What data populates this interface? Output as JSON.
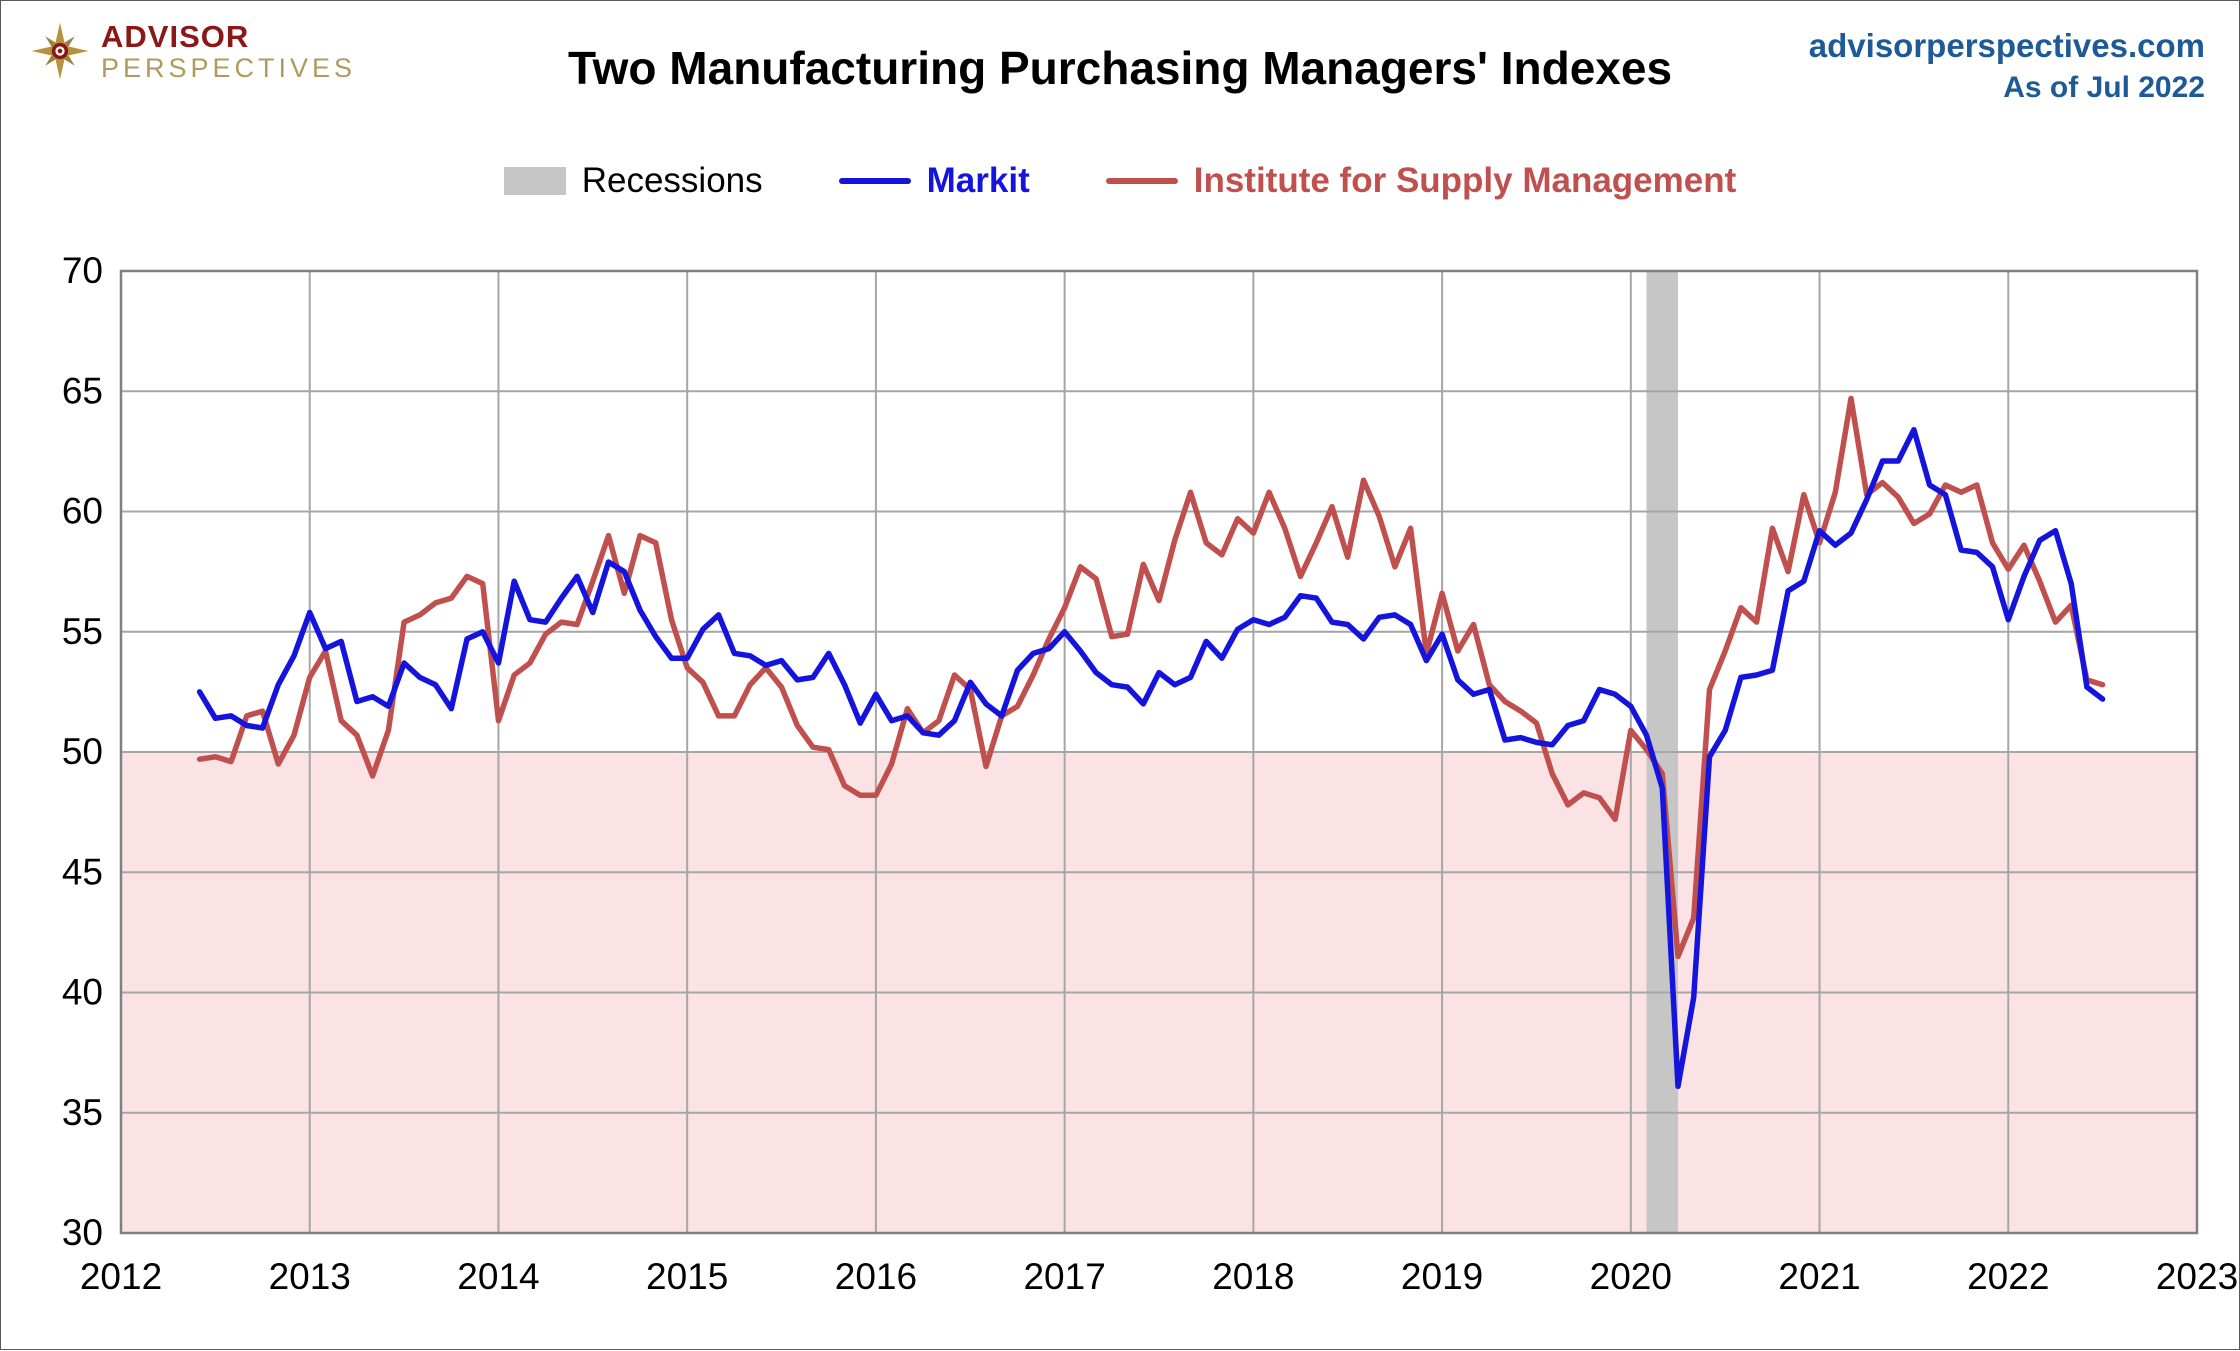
{
  "header": {
    "logo_line1": "ADVISOR",
    "logo_line2": "PERSPECTIVES",
    "title": "Two Manufacturing Purchasing Managers' Indexes",
    "site": "advisorperspectives.com",
    "as_of": "As of Jul 2022"
  },
  "legend": {
    "recessions_label": "Recessions",
    "series": [
      {
        "label": "Markit",
        "color": "#1414dd"
      },
      {
        "label": "Institute for Supply Management",
        "color": "#c0504d"
      }
    ]
  },
  "colors": {
    "recession_band": "#c6c6c6",
    "below50_fill": "#fbe2e4",
    "grid": "#a6a6a6",
    "plot_border": "#808080",
    "axis_text": "#000000",
    "site_text": "#1d5a96",
    "logo_red": "#8b1717",
    "logo_tan": "#b09a5e"
  },
  "chart_data": {
    "type": "line",
    "title": "Two Manufacturing Purchasing Managers' Indexes",
    "xlabel": "",
    "ylabel": "",
    "xlim": [
      2012,
      2023
    ],
    "ylim": [
      30,
      70
    ],
    "x_ticks": [
      2012,
      2013,
      2014,
      2015,
      2016,
      2017,
      2018,
      2019,
      2020,
      2021,
      2022,
      2023
    ],
    "y_ticks": [
      30,
      35,
      40,
      45,
      50,
      55,
      60,
      65,
      70
    ],
    "grid": true,
    "legend_position": "top",
    "neutral_level": 50,
    "x_start": {
      "year": 2012,
      "month": 6
    },
    "frequency": "monthly",
    "recessions": [
      {
        "start": 2020.083,
        "end": 2020.25
      }
    ],
    "series": [
      {
        "name": "Markit",
        "color": "#1414dd",
        "values": [
          52.5,
          51.4,
          51.5,
          51.1,
          51.0,
          52.8,
          54.0,
          55.8,
          54.3,
          54.6,
          52.1,
          52.3,
          51.9,
          53.7,
          53.1,
          52.8,
          51.8,
          54.7,
          55.0,
          53.7,
          57.1,
          55.5,
          55.4,
          56.4,
          57.3,
          55.8,
          57.9,
          57.5,
          55.9,
          54.8,
          53.9,
          53.9,
          55.1,
          55.7,
          54.1,
          54.0,
          53.6,
          53.8,
          53.0,
          53.1,
          54.1,
          52.8,
          51.2,
          52.4,
          51.3,
          51.5,
          50.8,
          50.7,
          51.3,
          52.9,
          52.0,
          51.5,
          53.4,
          54.1,
          54.3,
          55.0,
          54.2,
          53.3,
          52.8,
          52.7,
          52.0,
          53.3,
          52.8,
          53.1,
          54.6,
          53.9,
          55.1,
          55.5,
          55.3,
          55.6,
          56.5,
          56.4,
          55.4,
          55.3,
          54.7,
          55.6,
          55.7,
          55.3,
          53.8,
          54.9,
          53.0,
          52.4,
          52.6,
          50.5,
          50.6,
          50.4,
          50.3,
          51.1,
          51.3,
          52.6,
          52.4,
          51.9,
          50.7,
          48.5,
          36.1,
          39.8,
          49.8,
          50.9,
          53.1,
          53.2,
          53.4,
          56.7,
          57.1,
          59.2,
          58.6,
          59.1,
          60.5,
          62.1,
          62.1,
          63.4,
          61.1,
          60.7,
          58.4,
          58.3,
          57.7,
          55.5,
          57.3,
          58.8,
          59.2,
          57.0,
          52.7,
          52.2
        ]
      },
      {
        "name": "Institute for Supply Management",
        "color": "#c0504d",
        "values": [
          49.7,
          49.8,
          49.6,
          51.5,
          51.7,
          49.5,
          50.7,
          53.1,
          54.2,
          51.3,
          50.7,
          49.0,
          50.9,
          55.4,
          55.7,
          56.2,
          56.4,
          57.3,
          57.0,
          51.3,
          53.2,
          53.7,
          54.9,
          55.4,
          55.3,
          57.1,
          59.0,
          56.6,
          59.0,
          58.7,
          55.5,
          53.5,
          52.9,
          51.5,
          51.5,
          52.8,
          53.5,
          52.7,
          51.1,
          50.2,
          50.1,
          48.6,
          48.2,
          48.2,
          49.5,
          51.8,
          50.8,
          51.3,
          53.2,
          52.6,
          49.4,
          51.5,
          51.9,
          53.2,
          54.7,
          56.0,
          57.7,
          57.2,
          54.8,
          54.9,
          57.8,
          56.3,
          58.8,
          60.8,
          58.7,
          58.2,
          59.7,
          59.1,
          60.8,
          59.3,
          57.3,
          58.7,
          60.2,
          58.1,
          61.3,
          59.8,
          57.7,
          59.3,
          54.1,
          56.6,
          54.2,
          55.3,
          52.8,
          52.1,
          51.7,
          51.2,
          49.1,
          47.8,
          48.3,
          48.1,
          47.2,
          50.9,
          50.1,
          49.1,
          41.5,
          43.1,
          52.6,
          54.2,
          56.0,
          55.4,
          59.3,
          57.5,
          60.7,
          58.7,
          60.8,
          64.7,
          60.7,
          61.2,
          60.6,
          59.5,
          59.9,
          61.1,
          60.8,
          61.1,
          58.7,
          57.6,
          58.6,
          57.1,
          55.4,
          56.1,
          53.0,
          52.8
        ]
      }
    ]
  }
}
